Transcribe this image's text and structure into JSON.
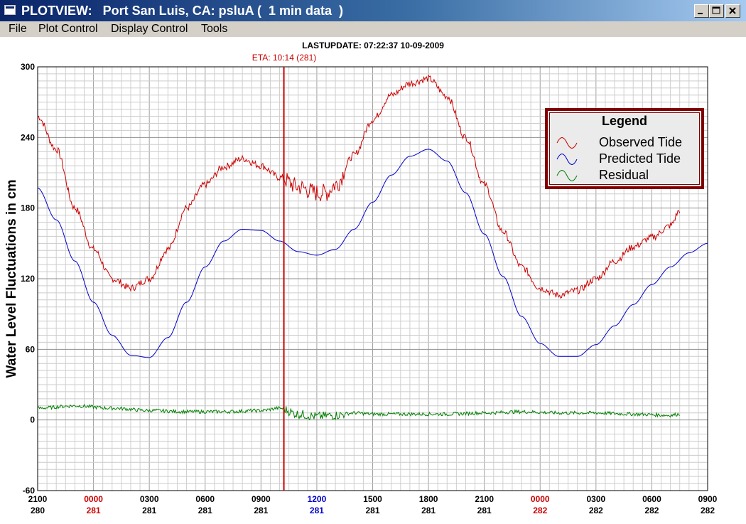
{
  "window": {
    "title": "PLOTVIEW:   Port San Luis, CA: psluA (  1 min data  )",
    "buttons": {
      "minimize": "minimize-icon",
      "maximize": "maximize-icon",
      "close": "close-icon"
    }
  },
  "menu": [
    "File",
    "Plot Control",
    "Display Control",
    "Tools"
  ],
  "header": {
    "last_update": "LASTUPDATE: 07:22:37  10-09-2009",
    "eta": "ETA: 10:14 (281)"
  },
  "colors": {
    "observed": "#cc0000",
    "predicted": "#0000cc",
    "residual": "#008000",
    "eta_line": "#cc0000",
    "legend_border": "#800000"
  },
  "legend": {
    "title": "Legend",
    "items": [
      "Observed Tide",
      "Predicted Tide",
      "Residual"
    ]
  },
  "chart_data": {
    "type": "line",
    "ylabel": "Water Level Fluctuations in cm",
    "ylim": [
      -60,
      300
    ],
    "yticks": [
      "300",
      "240",
      "180",
      "120",
      "60",
      "0",
      "-60"
    ],
    "xlim_hours": [
      0,
      36
    ],
    "xticks": [
      {
        "time": "2100",
        "day": "280",
        "highlight": "none"
      },
      {
        "time": "0000",
        "day": "281",
        "highlight": "red"
      },
      {
        "time": "0300",
        "day": "281",
        "highlight": "none"
      },
      {
        "time": "0600",
        "day": "281",
        "highlight": "none"
      },
      {
        "time": "0900",
        "day": "281",
        "highlight": "none"
      },
      {
        "time": "1200",
        "day": "281",
        "highlight": "blue"
      },
      {
        "time": "1500",
        "day": "281",
        "highlight": "none"
      },
      {
        "time": "1800",
        "day": "281",
        "highlight": "none"
      },
      {
        "time": "2100",
        "day": "281",
        "highlight": "none"
      },
      {
        "time": "0000",
        "day": "282",
        "highlight": "red"
      },
      {
        "time": "0300",
        "day": "282",
        "highlight": "none"
      },
      {
        "time": "0600",
        "day": "282",
        "highlight": "none"
      },
      {
        "time": "0900",
        "day": "282",
        "highlight": "none"
      }
    ],
    "eta_hour": 13.23,
    "grid": true,
    "legend_position": "top-right",
    "series": [
      {
        "name": "Observed Tide",
        "color": "#cc0000",
        "noise": 3,
        "x": [
          0,
          1,
          2,
          3,
          4,
          5,
          6,
          7,
          8,
          9,
          10,
          11,
          12,
          13,
          14,
          15,
          15.5,
          16,
          17,
          18,
          19,
          20,
          21,
          22,
          23,
          24,
          25,
          26,
          27,
          28,
          29,
          30,
          31,
          32,
          33,
          34,
          34.5
        ],
        "y": [
          258,
          230,
          180,
          145,
          120,
          112,
          120,
          145,
          180,
          200,
          215,
          222,
          216,
          206,
          198,
          193,
          193,
          200,
          225,
          255,
          276,
          286,
          290,
          275,
          240,
          200,
          160,
          130,
          112,
          106,
          110,
          120,
          135,
          147,
          155,
          165,
          178
        ]
      },
      {
        "name": "Predicted Tide",
        "color": "#0000cc",
        "noise": 0,
        "x": [
          0,
          1,
          2,
          3,
          4,
          5,
          6,
          7,
          8,
          9,
          10,
          11,
          12,
          13,
          14,
          15,
          16,
          17,
          18,
          19,
          20,
          21,
          22,
          23,
          24,
          25,
          26,
          27,
          28,
          29,
          30,
          31,
          32,
          33,
          34,
          35,
          36
        ],
        "y": [
          197,
          170,
          135,
          100,
          72,
          55,
          53,
          70,
          100,
          130,
          152,
          162,
          161,
          152,
          143,
          140,
          145,
          162,
          185,
          208,
          224,
          230,
          220,
          193,
          158,
          122,
          88,
          65,
          54,
          54,
          64,
          80,
          98,
          115,
          130,
          142,
          150
        ]
      },
      {
        "name": "Residual",
        "color": "#008000",
        "noise": 1.5,
        "x": [
          0,
          2,
          4,
          6,
          8,
          10,
          12,
          13,
          14,
          15,
          16,
          17,
          18,
          20,
          22,
          24,
          26,
          28,
          30,
          32,
          34,
          34.5
        ],
        "y": [
          10,
          12,
          10,
          8,
          7,
          7,
          8,
          10,
          5,
          3,
          4,
          6,
          5,
          5,
          5,
          6,
          7,
          6,
          6,
          5,
          4,
          5
        ]
      }
    ]
  }
}
